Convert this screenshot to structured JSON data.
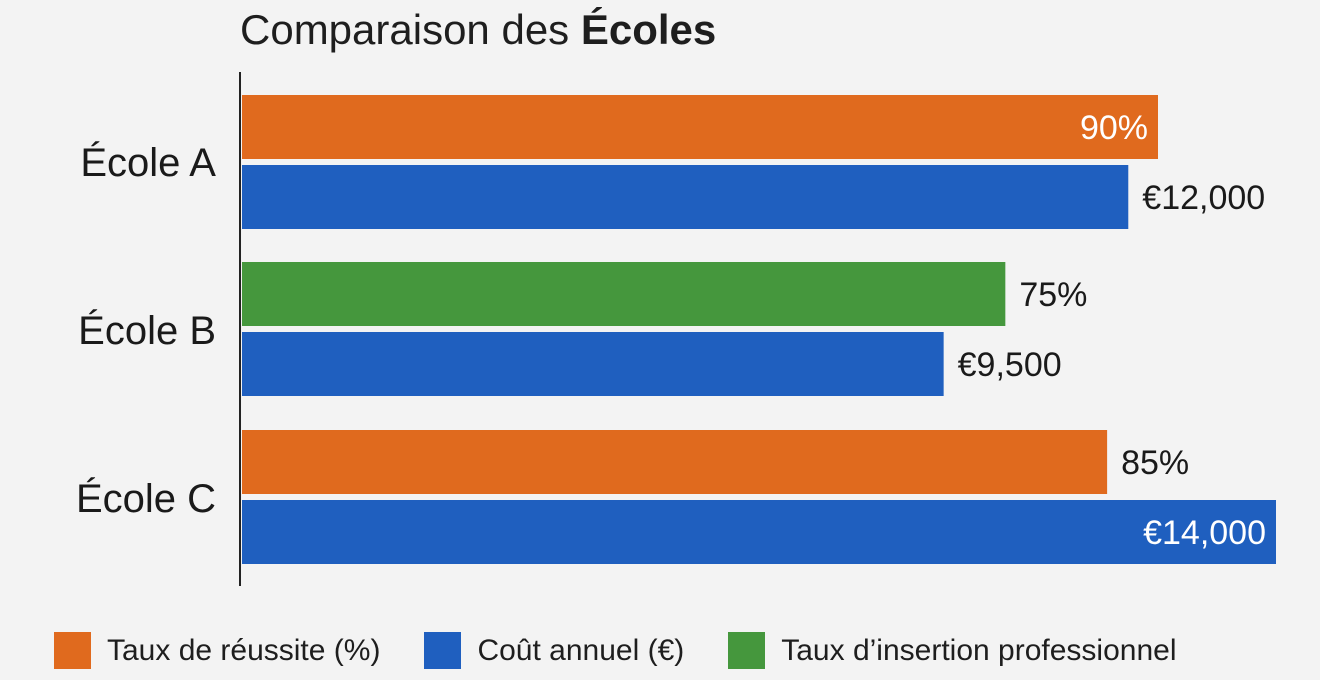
{
  "chart_data": {
    "type": "bar",
    "orientation": "horizontal",
    "title_regular": "Comparaison des",
    "title_bold": "Écoles",
    "categories": [
      "École A",
      "École B",
      "École C"
    ],
    "bars": [
      {
        "category": "École A",
        "series": "Taux de réussite (%)",
        "value": 90,
        "label": "90%"
      },
      {
        "category": "École A",
        "series": "Coût annuel (€)",
        "value": 12000,
        "label": "€12,000"
      },
      {
        "category": "École B",
        "series": "Taux d’insertion professionnel",
        "value": 75,
        "label": "75%"
      },
      {
        "category": "École B",
        "series": "Coût annuel (€)",
        "value": 9500,
        "label": "€9,500"
      },
      {
        "category": "École C",
        "series": "Taux de réussite (%)",
        "value": 85,
        "label": "85%"
      },
      {
        "category": "École C",
        "series": "Coût annuel (€)",
        "value": 14000,
        "label": "€14,000"
      }
    ],
    "legend": [
      {
        "name": "Taux de réussite (%)",
        "color": "#e06a1e"
      },
      {
        "name": "Coût annuel (€)",
        "color": "#1f5fbf"
      },
      {
        "name": "Taux d’insertion professionnel",
        "color": "#45973d"
      }
    ],
    "legend_position": "bottom",
    "grid": false
  }
}
